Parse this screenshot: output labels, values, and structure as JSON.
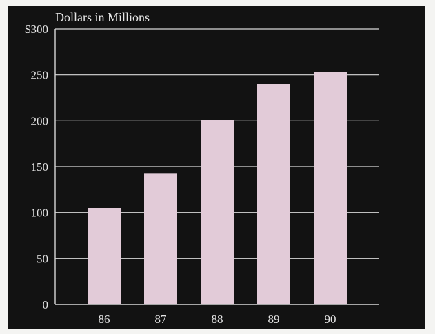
{
  "chart_data": {
    "type": "bar",
    "ylabel": "Dollars in Millions",
    "xlabel": "",
    "categories": [
      "86",
      "87",
      "88",
      "89",
      "90"
    ],
    "values": [
      105,
      143,
      201,
      240,
      253
    ],
    "ylim": [
      0,
      300
    ],
    "yticks": [
      {
        "value": 0,
        "label": "0"
      },
      {
        "value": 50,
        "label": "50"
      },
      {
        "value": 100,
        "label": "100"
      },
      {
        "value": 150,
        "label": "150"
      },
      {
        "value": 200,
        "label": "200"
      },
      {
        "value": 250,
        "label": "250"
      },
      {
        "value": 300,
        "label": "$300"
      }
    ],
    "grid": true,
    "colors": {
      "background": "#121212",
      "bar": "#e2cbd8",
      "grid": "#d8d8d8",
      "axis": "#d8d8d8",
      "text": "#e6e6e6"
    }
  }
}
